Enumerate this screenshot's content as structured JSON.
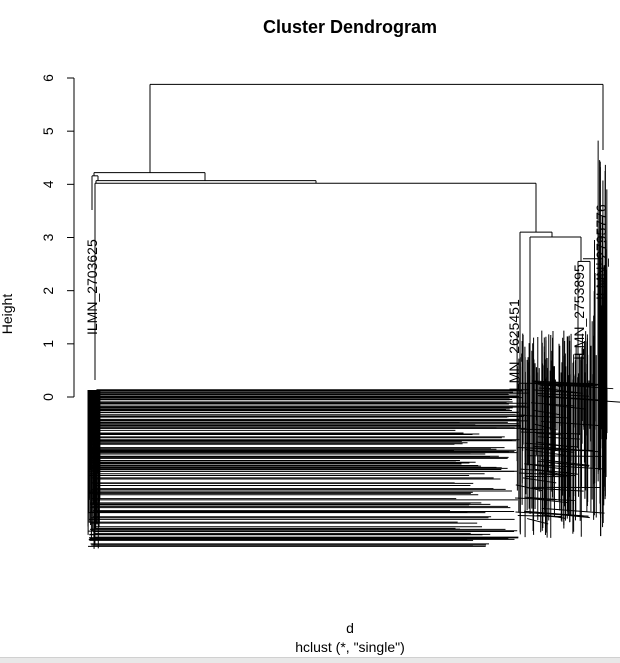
{
  "chart_data": {
    "type": "dendrogram",
    "title": "Cluster Dendrogram",
    "xlabel": "d",
    "sublabel": "hclust (*, \"single\")",
    "ylabel": "Height",
    "ylim": [
      0,
      6
    ],
    "yticks": [
      0,
      1,
      2,
      3,
      4,
      5,
      6
    ],
    "merges": [
      {
        "height": 5.88,
        "note": "root merge"
      },
      {
        "height": 4.22
      },
      {
        "height": 4.16
      },
      {
        "height": 4.07
      },
      {
        "height": 4.02
      },
      {
        "height": 3.1
      },
      {
        "height": 3.01
      },
      {
        "height": 2.55
      }
    ],
    "visible_labels": [
      "ILMN_2625451",
      "ILMN_2753895",
      "ILMN_2703625",
      "ILMN_2795776"
    ]
  }
}
